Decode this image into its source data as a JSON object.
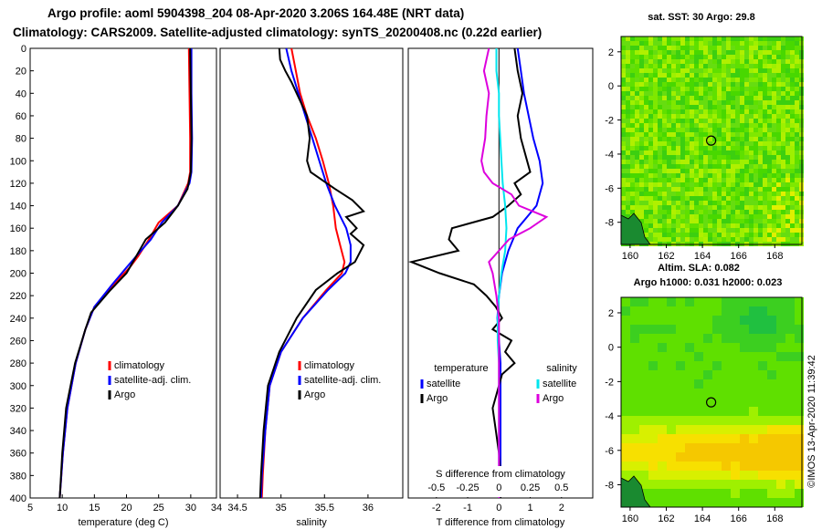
{
  "header": {
    "line1": "Argo profile: aoml 5904398_204 08-Apr-2020 3.206S 164.48E (NRT data)",
    "line2": "Climatology: CARS2009. Satellite-adjusted climatology: synTS_20200408.nc (0.22d earlier)"
  },
  "colors": {
    "climatology": "#ff0000",
    "satellite": "#0000ff",
    "argo": "#000000",
    "sat_salinity": "#00e5ee",
    "argo_salinity": "#dd00dd"
  },
  "chart_data": [
    {
      "type": "line",
      "xlabel": "temperature (deg C)",
      "ylabel": "",
      "xlim": [
        5,
        34
      ],
      "ylim": [
        400,
        0
      ],
      "xticks": [
        "5",
        "10",
        "15",
        "20",
        "25",
        "30",
        "34"
      ],
      "yticks": [
        "0",
        "20",
        "40",
        "60",
        "80",
        "100",
        "120",
        "140",
        "160",
        "180",
        "200",
        "220",
        "240",
        "260",
        "280",
        "300",
        "320",
        "340",
        "360",
        "380",
        "400"
      ],
      "legend": [
        "climatology",
        "satellite-adj. clim.",
        "Argo"
      ],
      "series": [
        {
          "name": "climatology",
          "depth": [
            0,
            40,
            80,
            110,
            120,
            140,
            155,
            170,
            185,
            195,
            210,
            230,
            250,
            280,
            320,
            360,
            400
          ],
          "values": [
            29.7,
            29.8,
            29.9,
            29.9,
            29.6,
            28.0,
            25.0,
            23.5,
            21.8,
            20.5,
            18.0,
            15.0,
            13.6,
            12.1,
            10.8,
            10.1,
            9.6
          ]
        },
        {
          "name": "satellite-adj. clim.",
          "depth": [
            0,
            40,
            80,
            110,
            120,
            140,
            155,
            170,
            185,
            195,
            210,
            230,
            250,
            280,
            320,
            360,
            400
          ],
          "values": [
            30.1,
            30.1,
            30.2,
            30.1,
            29.8,
            28.0,
            25.5,
            23.8,
            21.5,
            20.0,
            17.8,
            15.0,
            13.6,
            12.1,
            10.8,
            10.1,
            9.6
          ]
        },
        {
          "name": "Argo",
          "depth": [
            0,
            40,
            80,
            110,
            125,
            140,
            155,
            170,
            185,
            200,
            215,
            235,
            250,
            280,
            320,
            360,
            400
          ],
          "values": [
            29.9,
            30.0,
            30.1,
            30.0,
            29.5,
            28.0,
            26.0,
            23.0,
            21.5,
            20.0,
            17.5,
            14.5,
            13.6,
            12.0,
            10.6,
            10.0,
            9.6
          ]
        }
      ]
    },
    {
      "type": "line",
      "xlabel": "salinity",
      "xlim": [
        34.3,
        36.4
      ],
      "ylim": [
        400,
        0
      ],
      "xticks": [
        "34.5",
        "35",
        "35.5",
        "36"
      ],
      "legend": [
        "climatology",
        "satellite-adj. clim.",
        "Argo"
      ],
      "series": [
        {
          "name": "climatology",
          "depth": [
            0,
            20,
            40,
            60,
            80,
            100,
            120,
            140,
            160,
            175,
            190,
            200,
            215,
            240,
            270,
            300,
            340,
            380,
            400
          ],
          "values": [
            35.12,
            35.17,
            35.22,
            35.3,
            35.4,
            35.48,
            35.55,
            35.6,
            35.63,
            35.68,
            35.73,
            35.7,
            35.52,
            35.25,
            35.0,
            34.87,
            34.82,
            34.79,
            34.78
          ]
        },
        {
          "name": "satellite-adj. clim.",
          "depth": [
            0,
            20,
            40,
            60,
            80,
            100,
            120,
            140,
            160,
            175,
            190,
            200,
            215,
            240,
            270,
            300,
            340,
            380,
            400
          ],
          "values": [
            35.06,
            35.12,
            35.2,
            35.28,
            35.36,
            35.44,
            35.52,
            35.62,
            35.75,
            35.8,
            35.8,
            35.74,
            35.54,
            35.25,
            35.0,
            34.87,
            34.82,
            34.78,
            34.77
          ]
        },
        {
          "name": "Argo",
          "depth": [
            0,
            10,
            20,
            30,
            40,
            60,
            80,
            100,
            110,
            125,
            135,
            145,
            150,
            160,
            165,
            175,
            190,
            200,
            215,
            240,
            270,
            300,
            340,
            380,
            400
          ],
          "values": [
            34.98,
            34.99,
            35.05,
            35.12,
            35.18,
            35.3,
            35.33,
            35.3,
            35.34,
            35.62,
            35.82,
            35.95,
            35.75,
            35.87,
            35.8,
            35.95,
            35.85,
            35.65,
            35.4,
            35.18,
            34.98,
            34.85,
            34.8,
            34.77,
            34.76
          ]
        }
      ]
    },
    {
      "type": "line",
      "xlabel": "T difference from climatology",
      "xlim": [
        -2.9,
        3.0
      ],
      "ylim": [
        400,
        0
      ],
      "xticks": [
        "-2",
        "-1",
        "0",
        "1",
        "2"
      ],
      "secondary_xlabel": "S difference from climatology",
      "secondary_xticks": [
        "-0.5",
        "-0.25",
        "0",
        "0.25",
        "0.5"
      ],
      "secondary_xlim": [
        -0.725,
        0.75
      ],
      "legend_temperature": {
        "heading": "temperature",
        "items": [
          "satellite",
          "Argo"
        ]
      },
      "legend_salinity": {
        "heading": "salinity",
        "items": [
          "satellite",
          "Argo"
        ]
      },
      "series": [
        {
          "name": "temperature satellite",
          "quantity": "T",
          "depth": [
            0,
            20,
            40,
            60,
            80,
            100,
            120,
            140,
            150,
            160,
            180,
            200,
            220,
            240,
            260,
            280,
            300,
            340,
            380,
            400
          ],
          "values": [
            0.6,
            0.7,
            0.8,
            0.95,
            1.1,
            1.3,
            1.4,
            1.2,
            0.9,
            0.6,
            0.3,
            0.1,
            0.0,
            -0.05,
            0.0,
            0.05,
            0.05,
            0.05,
            0.05,
            0.05
          ]
        },
        {
          "name": "temperature Argo",
          "quantity": "T",
          "depth": [
            0,
            20,
            40,
            60,
            80,
            100,
            110,
            120,
            130,
            140,
            150,
            160,
            170,
            180,
            190,
            200,
            210,
            220,
            230,
            240,
            250,
            260,
            270,
            280,
            290,
            300,
            320,
            340,
            360,
            380,
            400
          ],
          "values": [
            0.5,
            0.6,
            0.75,
            0.6,
            0.7,
            0.9,
            1.0,
            0.5,
            0.7,
            0.3,
            -0.2,
            -1.5,
            -1.6,
            -1.3,
            -2.8,
            -1.9,
            -0.8,
            -0.4,
            -0.1,
            0.1,
            -0.2,
            0.4,
            0.2,
            0.5,
            0.1,
            0.0,
            -0.2,
            -0.1,
            0.0,
            0.05,
            0.05
          ]
        },
        {
          "name": "salinity satellite",
          "quantity": "S",
          "depth": [
            0,
            20,
            40,
            60,
            80,
            100,
            120,
            140,
            160,
            180,
            200,
            220,
            240,
            260,
            280,
            300,
            340,
            380,
            400
          ],
          "values": [
            -0.02,
            -0.02,
            0.0,
            0.0,
            0.01,
            0.02,
            0.03,
            0.05,
            0.06,
            0.05,
            0.02,
            0.0,
            -0.01,
            -0.01,
            0.0,
            0.0,
            0.0,
            0.0,
            0.0
          ]
        },
        {
          "name": "salinity Argo",
          "quantity": "S",
          "depth": [
            0,
            10,
            20,
            40,
            60,
            80,
            100,
            110,
            120,
            130,
            140,
            150,
            160,
            170,
            180,
            190,
            200,
            220,
            240,
            260,
            280,
            300,
            340,
            380,
            400
          ],
          "values": [
            -0.08,
            -0.1,
            -0.12,
            -0.08,
            -0.1,
            -0.11,
            -0.14,
            -0.12,
            -0.05,
            0.1,
            0.16,
            0.38,
            0.25,
            0.08,
            0.0,
            -0.08,
            -0.05,
            -0.02,
            0.0,
            0.0,
            0.0,
            0.0,
            0.0,
            0.0,
            0.0
          ]
        }
      ]
    }
  ],
  "maps": [
    {
      "title": "sat. SST: 30 Argo: 29.8",
      "xticks": [
        "160",
        "162",
        "164",
        "166",
        "168"
      ],
      "yticks": [
        "2",
        "0",
        "-2",
        "-4",
        "-6",
        "-8"
      ],
      "xlim": [
        159.5,
        169.5
      ],
      "ylim": [
        -9.3,
        2.9
      ],
      "argo_lon": 164.48,
      "argo_lat": -3.206
    },
    {
      "title": "Altim. SLA: 0.082",
      "subtitle": "Argo h1000: 0.031 h2000: 0.023",
      "xticks": [
        "160",
        "162",
        "164",
        "166",
        "168"
      ],
      "yticks": [
        "2",
        "0",
        "-2",
        "-4",
        "-6",
        "-8"
      ],
      "xlim": [
        159.5,
        169.5
      ],
      "ylim": [
        -9.3,
        2.9
      ],
      "argo_lon": 164.48,
      "argo_lat": -3.206
    }
  ],
  "credit": "©IMOS 13-Apr-2020 11:39:42"
}
